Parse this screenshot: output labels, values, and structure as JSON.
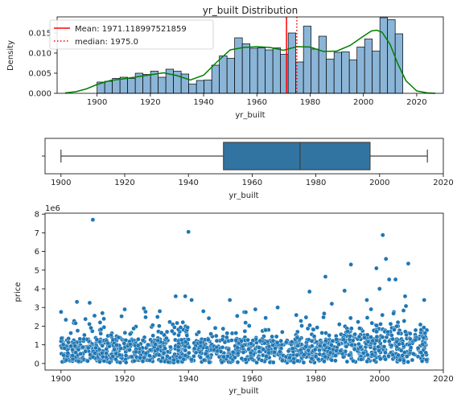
{
  "chart_data": [
    {
      "type": "bar",
      "subtype": "histogram-with-kde",
      "title": "yr_built Distribution",
      "xlabel": "yr_built",
      "ylabel": "Density",
      "xlim": [
        1885,
        2030
      ],
      "ylim": [
        0,
        0.019
      ],
      "xticks": [
        "1900",
        "1920",
        "1940",
        "1960",
        "1980",
        "2000",
        "2020"
      ],
      "yticks": [
        "0.000",
        "0.005",
        "0.010",
        "0.015"
      ],
      "bin_start": 1900,
      "bin_width": 2.87,
      "densities": [
        0.0028,
        0.003,
        0.0037,
        0.004,
        0.0037,
        0.005,
        0.0047,
        0.0055,
        0.004,
        0.006,
        0.0055,
        0.0048,
        0.0023,
        0.0032,
        0.0033,
        0.007,
        0.0093,
        0.0087,
        0.0138,
        0.0123,
        0.0112,
        0.0113,
        0.0108,
        0.0113,
        0.0097,
        0.015,
        0.0078,
        0.0167,
        0.011,
        0.0142,
        0.0085,
        0.0102,
        0.0103,
        0.0083,
        0.0115,
        0.0135,
        0.0105,
        0.0188,
        0.0183,
        0.0148
      ],
      "kde": {
        "color": "#008000",
        "x": [
          1888,
          1892,
          1896,
          1900,
          1905,
          1910,
          1915,
          1920,
          1925,
          1930,
          1935,
          1940,
          1945,
          1950,
          1955,
          1960,
          1965,
          1970,
          1975,
          1980,
          1985,
          1990,
          1995,
          2000,
          2003,
          2005,
          2007,
          2010,
          2013,
          2016,
          2020,
          2024,
          2027
        ],
        "y": [
          0.0001,
          0.0004,
          0.0011,
          0.0022,
          0.0032,
          0.0036,
          0.0041,
          0.0046,
          0.0051,
          0.0044,
          0.0033,
          0.0045,
          0.0078,
          0.0108,
          0.0114,
          0.0116,
          0.0114,
          0.0107,
          0.0116,
          0.0115,
          0.0104,
          0.0105,
          0.0119,
          0.0142,
          0.0155,
          0.0157,
          0.0152,
          0.0122,
          0.0072,
          0.0031,
          0.0006,
          0.0001,
          0.0
        ]
      },
      "bar_color": "#8bb5d7",
      "mean_line": {
        "x": 1971.118997521859,
        "label": "Mean: 1971.118997521859",
        "color": "#ff0000",
        "style": "solid"
      },
      "median_line": {
        "x": 1975.0,
        "label": "median: 1975.0",
        "color": "#ff0000",
        "style": "dotted"
      },
      "legend_placement": "upper-left",
      "grid": false
    },
    {
      "type": "boxplot",
      "xlabel": "yr_built",
      "xlim": [
        1895,
        2020
      ],
      "xticks": [
        "1900",
        "1920",
        "1940",
        "1960",
        "1980",
        "2000",
        "2020"
      ],
      "ytick_label": "",
      "min": 1900,
      "q1": 1951,
      "median": 1975,
      "q3": 1997,
      "max": 2015,
      "box_color": "#3274a1",
      "grid": false
    },
    {
      "type": "scatter",
      "xlabel": "yr_built",
      "ylabel": "price",
      "y_scale_label": "1e6",
      "xlim": [
        1895,
        2020
      ],
      "ylim": [
        -0.35,
        8.05
      ],
      "xticks": [
        "1900",
        "1920",
        "1940",
        "1960",
        "1980",
        "2000",
        "2020"
      ],
      "yticks": [
        "0",
        "1",
        "2",
        "3",
        "4",
        "5",
        "6",
        "7",
        "8"
      ],
      "marker_color": "#1f77b4",
      "grid": false,
      "points_highlight": [
        {
          "x": 1910,
          "y": 7.7
        },
        {
          "x": 1940,
          "y": 7.05
        },
        {
          "x": 2001,
          "y": 6.88
        },
        {
          "x": 1991,
          "y": 5.3
        },
        {
          "x": 2009,
          "y": 5.35
        },
        {
          "x": 1999,
          "y": 5.1
        },
        {
          "x": 2002,
          "y": 5.6
        },
        {
          "x": 2003,
          "y": 4.5
        },
        {
          "x": 1983,
          "y": 4.65
        },
        {
          "x": 2005,
          "y": 4.5
        },
        {
          "x": 2000,
          "y": 4.0
        },
        {
          "x": 1978,
          "y": 3.85
        },
        {
          "x": 1989,
          "y": 3.9
        },
        {
          "x": 1936,
          "y": 3.6
        },
        {
          "x": 1909,
          "y": 3.25
        },
        {
          "x": 1905,
          "y": 3.3
        },
        {
          "x": 1953,
          "y": 3.4
        },
        {
          "x": 1941,
          "y": 3.4
        },
        {
          "x": 1939,
          "y": 3.6
        },
        {
          "x": 2014,
          "y": 3.4
        },
        {
          "x": 1996,
          "y": 3.4
        },
        {
          "x": 2008,
          "y": 3.6
        },
        {
          "x": 1985,
          "y": 3.2
        },
        {
          "x": 1968,
          "y": 3.0
        },
        {
          "x": 1926,
          "y": 2.95
        },
        {
          "x": 1920,
          "y": 2.9
        },
        {
          "x": 1931,
          "y": 2.8
        },
        {
          "x": 1961,
          "y": 2.9
        },
        {
          "x": 1913,
          "y": 2.7
        },
        {
          "x": 1958,
          "y": 2.75
        }
      ],
      "cloud": {
        "seed": 7,
        "count": 1400,
        "x_range": [
          1900,
          2015
        ]
      }
    }
  ]
}
